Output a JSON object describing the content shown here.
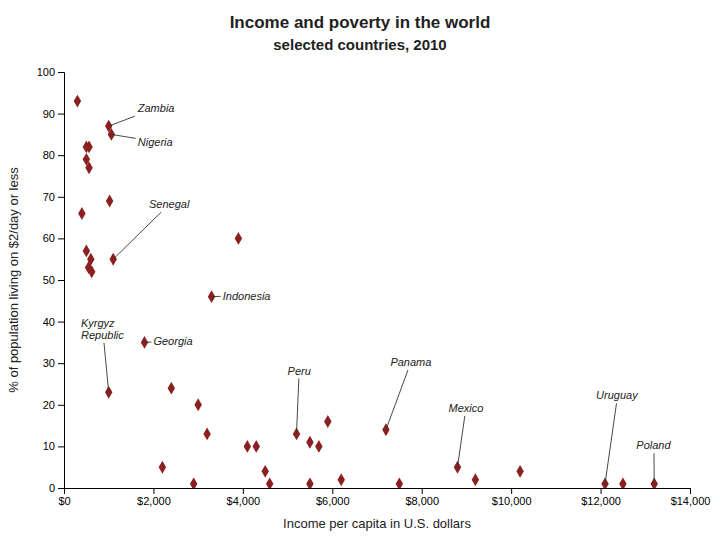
{
  "chart_data": {
    "type": "scatter",
    "title": "Income and poverty in the world",
    "subtitle": "selected countries, 2010",
    "x_label": "Income per capita in U.S. dollars",
    "y_label": "% of population living on $2/day or less",
    "x": [
      300,
      500,
      560,
      500,
      560,
      400,
      500,
      600,
      550,
      620,
      1000,
      1060,
      1020,
      1100,
      1000,
      1800,
      2400,
      2200,
      3000,
      3200,
      2900,
      3300,
      3900,
      4100,
      4300,
      4500,
      4600,
      5200,
      5500,
      5700,
      5500,
      5900,
      6200,
      7200,
      7500,
      8800,
      9200,
      10200,
      12100,
      12500,
      13200
    ],
    "values": [
      93,
      82,
      82,
      79,
      77,
      66,
      57,
      55,
      53,
      52,
      87,
      85,
      69,
      55,
      23,
      35,
      24,
      5,
      20,
      13,
      1,
      46,
      60,
      10,
      10,
      4,
      1,
      13,
      11,
      10,
      1,
      16,
      2,
      14,
      1,
      5,
      2,
      4,
      1,
      1,
      1
    ],
    "color": "#8B2020",
    "marker": "diamond",
    "xlim": [
      0,
      14000
    ],
    "xticks": [
      {
        "value": 0,
        "label": "$0"
      },
      {
        "value": 2000,
        "label": "$2,000"
      },
      {
        "value": 4000,
        "label": "$4,000"
      },
      {
        "value": 6000,
        "label": "$6,000"
      },
      {
        "value": 8000,
        "label": "$8,000"
      },
      {
        "value": 10000,
        "label": "$10,000"
      },
      {
        "value": 12000,
        "label": "$12,000"
      },
      {
        "value": 14000,
        "label": "$14,000"
      }
    ],
    "ylim": [
      0,
      100
    ],
    "yticks": [
      0,
      10,
      20,
      30,
      40,
      50,
      60,
      70,
      80,
      90,
      100
    ],
    "grid": false,
    "annotations": [
      {
        "text": "Zambia",
        "x": 1000,
        "y": 87,
        "text_x": 1650,
        "text_y": 91
      },
      {
        "text": "Nigeria",
        "x": 1060,
        "y": 85,
        "text_x": 1650,
        "text_y": 83
      },
      {
        "text": "Senegal",
        "x": 1100,
        "y": 55,
        "text_x": 1900,
        "text_y": 68
      },
      {
        "text": "Indonesia",
        "x": 3300,
        "y": 46,
        "text_x": 3550,
        "text_y": 46
      },
      {
        "text": "Georgia",
        "x": 1800,
        "y": 35,
        "text_x": 2000,
        "text_y": 35
      },
      {
        "text": "Kyrgyz\nRepublic",
        "x": 1000,
        "y": 23,
        "text_x": 380,
        "text_y": 38
      },
      {
        "text": "Peru",
        "x": 5200,
        "y": 13,
        "text_x": 5000,
        "text_y": 28
      },
      {
        "text": "Panama",
        "x": 7200,
        "y": 14,
        "text_x": 7300,
        "text_y": 30
      },
      {
        "text": "Mexico",
        "x": 8800,
        "y": 5,
        "text_x": 8600,
        "text_y": 19
      },
      {
        "text": "Uruguay",
        "x": 12100,
        "y": 1,
        "text_x": 11900,
        "text_y": 22
      },
      {
        "text": "Poland",
        "x": 13200,
        "y": 1,
        "text_x": 12800,
        "text_y": 10
      }
    ]
  }
}
